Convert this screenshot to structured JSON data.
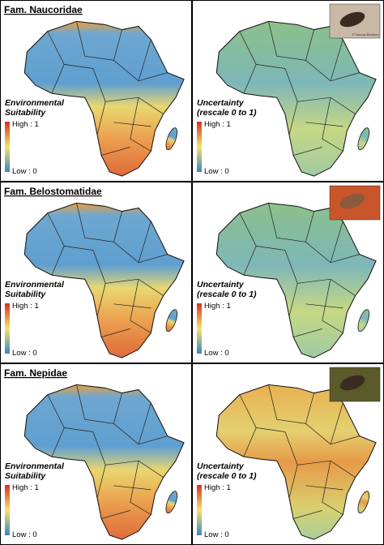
{
  "panels": [
    {
      "title": "Fam. Naucoridae",
      "left": {
        "legend_title": [
          "Environmental",
          "Suitability"
        ],
        "high": "High : 1",
        "low": "Low : 0"
      },
      "right": {
        "legend_title": [
          "Uncertainty",
          "(rescale 0 to 1)"
        ],
        "high": "High : 1",
        "low": "Low : 0"
      },
      "photo_credit": "©Thomas Breason"
    },
    {
      "title": "Fam. Belostomatidae",
      "left": {
        "legend_title": [
          "Environmental",
          "Suitability"
        ],
        "high": "High : 1",
        "low": "Low : 0"
      },
      "right": {
        "legend_title": [
          "Uncertainty",
          "(rescale 0 to 1)"
        ],
        "high": "High : 1",
        "low": "Low : 0"
      }
    },
    {
      "title": "Fam. Nepidae",
      "left": {
        "legend_title": [
          "Environmental",
          "Suitability"
        ],
        "high": "High : 1",
        "low": "Low : 0"
      },
      "right": {
        "legend_title": [
          "Uncertainty",
          "(rescale 0 to 1)"
        ],
        "high": "High : 1",
        "low": "Low : 0"
      }
    }
  ]
}
